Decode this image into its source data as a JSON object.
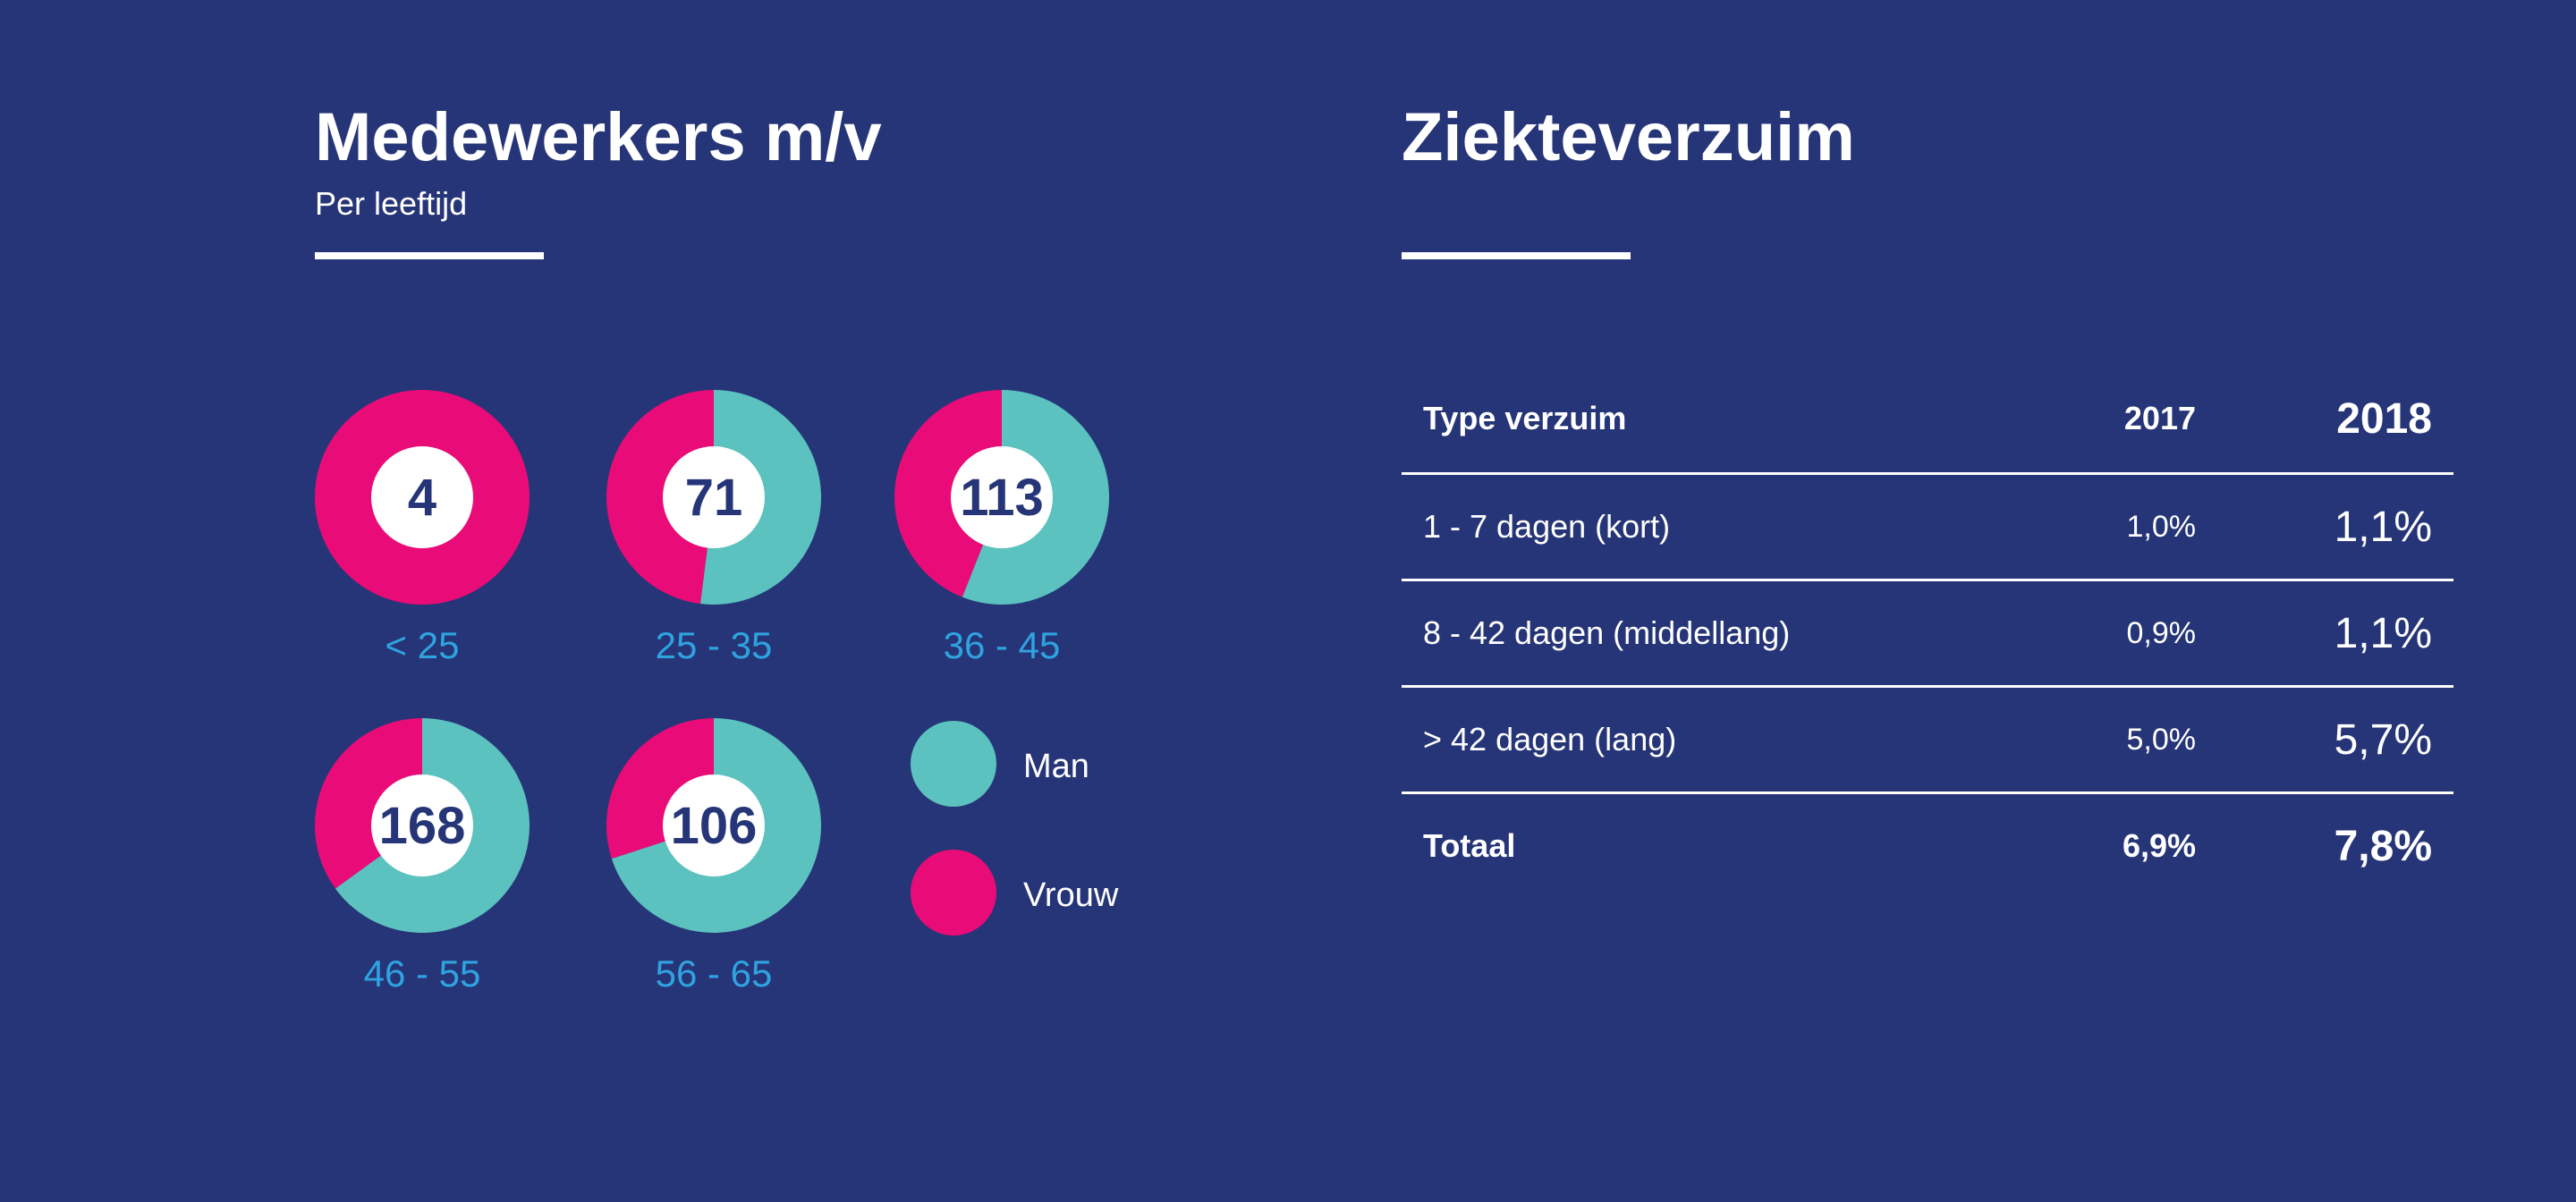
{
  "left": {
    "title": "Medewerkers m/v",
    "subtitle": "Per leeftijd"
  },
  "right": {
    "title": "Ziekteverzuim"
  },
  "colors": {
    "background": "#263577",
    "man": "#5bc2bf",
    "vrouw": "#e90c78",
    "age_label": "#2fa3e0",
    "count_text": "#263577"
  },
  "chart_data": {
    "type": "pie",
    "series_names": [
      "Man",
      "Vrouw"
    ],
    "groups": [
      {
        "label": "< 25",
        "total": "4",
        "man_share": 0.0
      },
      {
        "label": "25 - 35",
        "total": "71",
        "man_share": 0.52
      },
      {
        "label": "36 - 45",
        "total": "113",
        "man_share": 0.56
      },
      {
        "label": "46 - 55",
        "total": "168",
        "man_share": 0.65
      },
      {
        "label": "56 - 65",
        "total": "106",
        "man_share": 0.7
      }
    ],
    "legend": [
      {
        "label": "Man",
        "color": "#5bc2bf"
      },
      {
        "label": "Vrouw",
        "color": "#e90c78"
      }
    ]
  },
  "table": {
    "headers": [
      "Type verzuim",
      "2017",
      "2018"
    ],
    "rows": [
      [
        "1 - 7 dagen (kort)",
        "1,0%",
        "1,1%"
      ],
      [
        "8 - 42 dagen (middellang)",
        "0,9%",
        "1,1%"
      ],
      [
        "> 42 dagen (lang)",
        "5,0%",
        "5,7%"
      ]
    ],
    "total": [
      "Totaal",
      "6,9%",
      "7,8%"
    ]
  }
}
